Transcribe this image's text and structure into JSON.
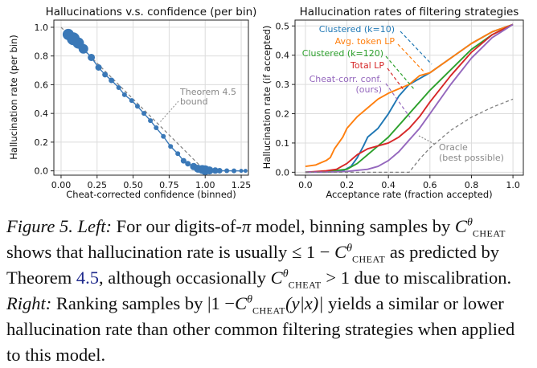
{
  "chart_data": [
    {
      "type": "scatter",
      "title": "Hallucinations v.s. confidence (per bin)",
      "xlabel": "Cheat-corrected confidence (binned)",
      "ylabel": "Hallucination rate (per bin)",
      "xlim": [
        -0.05,
        1.3
      ],
      "ylim": [
        -0.03,
        1.05
      ],
      "xticks": [
        "0.00",
        "0.25",
        "0.50",
        "0.75",
        "1.00",
        "1.25"
      ],
      "yticks": [
        "0.0",
        "0.2",
        "0.4",
        "0.6",
        "0.8",
        "1.0"
      ],
      "grid": true,
      "series": [
        {
          "color": "#3a78b7",
          "x": [
            0.05,
            0.085,
            0.12,
            0.155,
            0.21,
            0.26,
            0.305,
            0.35,
            0.4,
            0.44,
            0.49,
            0.53,
            0.575,
            0.62,
            0.66,
            0.71,
            0.76,
            0.81,
            0.85,
            0.88,
            0.92,
            0.95,
            0.98,
            1.0,
            1.03,
            1.07,
            1.1,
            1.15,
            1.2,
            1.25,
            1.28
          ],
          "y": [
            0.95,
            0.92,
            0.89,
            0.85,
            0.79,
            0.72,
            0.67,
            0.63,
            0.58,
            0.53,
            0.49,
            0.45,
            0.4,
            0.35,
            0.3,
            0.24,
            0.17,
            0.12,
            0.07,
            0.05,
            0.03,
            0.015,
            0.01,
            0.005,
            0.003,
            0.002,
            0.001,
            0.001,
            0.0,
            0.0,
            0.0
          ],
          "sizes": [
            7,
            8,
            7,
            6,
            4.5,
            4,
            3.5,
            3.5,
            3,
            3,
            3,
            3,
            3,
            3,
            3,
            3,
            3,
            3,
            3.5,
            3.5,
            4.5,
            5,
            5.5,
            6,
            5,
            4,
            3.5,
            3,
            3,
            2.5,
            2.5
          ]
        }
      ],
      "reference_line": {
        "name": "Theorem 4.5 bound",
        "x": [
          0,
          1,
          1.28
        ],
        "y": [
          1,
          0,
          0
        ],
        "color": "#888888"
      },
      "annotations": [
        "Theorem 4.5",
        "bound"
      ]
    },
    {
      "type": "line",
      "title": "Hallucination rates of filtering strategies",
      "xlabel": "Acceptance rate (fraction accepted)",
      "ylabel": "Hallucination rate (if accepted)",
      "xlim": [
        -0.05,
        1.05
      ],
      "ylim": [
        -0.01,
        0.52
      ],
      "xticks": [
        "0.0",
        "0.2",
        "0.4",
        "0.6",
        "0.8",
        "1.0"
      ],
      "yticks": [
        "0.0",
        "0.1",
        "0.2",
        "0.3",
        "0.4",
        "0.5"
      ],
      "grid": true,
      "series": [
        {
          "name": "Clustered (k=10)",
          "color": "#1f77b4",
          "x": [
            0.0,
            0.1,
            0.18,
            0.22,
            0.25,
            0.28,
            0.3,
            0.35,
            0.4,
            0.45,
            0.5,
            0.55,
            0.6,
            0.7,
            0.8,
            0.9,
            1.0
          ],
          "y": [
            0.0,
            0.003,
            0.005,
            0.02,
            0.05,
            0.09,
            0.12,
            0.15,
            0.2,
            0.26,
            0.3,
            0.32,
            0.34,
            0.39,
            0.44,
            0.48,
            0.505
          ]
        },
        {
          "name": "Avg. token LP",
          "color": "#ff7f0e",
          "x": [
            0.0,
            0.05,
            0.1,
            0.12,
            0.14,
            0.18,
            0.2,
            0.25,
            0.3,
            0.35,
            0.4,
            0.5,
            0.55,
            0.6,
            0.7,
            0.8,
            0.9,
            1.0
          ],
          "y": [
            0.02,
            0.025,
            0.04,
            0.05,
            0.08,
            0.12,
            0.15,
            0.19,
            0.22,
            0.25,
            0.27,
            0.3,
            0.33,
            0.34,
            0.39,
            0.44,
            0.48,
            0.505
          ]
        },
        {
          "name": "Clustered (k=120)",
          "color": "#2ca02c",
          "x": [
            0.0,
            0.1,
            0.2,
            0.25,
            0.3,
            0.35,
            0.4,
            0.45,
            0.5,
            0.55,
            0.6,
            0.7,
            0.8,
            0.9,
            1.0
          ],
          "y": [
            0.0,
            0.002,
            0.01,
            0.03,
            0.06,
            0.09,
            0.12,
            0.16,
            0.2,
            0.24,
            0.28,
            0.35,
            0.42,
            0.47,
            0.505
          ]
        },
        {
          "name": "Total LP",
          "color": "#d62728",
          "x": [
            0.0,
            0.1,
            0.15,
            0.2,
            0.25,
            0.3,
            0.35,
            0.4,
            0.45,
            0.5,
            0.55,
            0.6,
            0.7,
            0.8,
            0.9,
            1.0
          ],
          "y": [
            0.0,
            0.005,
            0.01,
            0.03,
            0.06,
            0.08,
            0.09,
            0.1,
            0.12,
            0.15,
            0.19,
            0.24,
            0.33,
            0.41,
            0.47,
            0.505
          ]
        },
        {
          "name": "Cheat-corr. conf. (ours)",
          "color": "#9467bd",
          "x": [
            0.0,
            0.1,
            0.2,
            0.3,
            0.35,
            0.4,
            0.45,
            0.5,
            0.55,
            0.6,
            0.7,
            0.8,
            0.9,
            1.0
          ],
          "y": [
            0.0,
            0.0,
            0.003,
            0.01,
            0.02,
            0.04,
            0.07,
            0.11,
            0.15,
            0.2,
            0.3,
            0.39,
            0.46,
            0.505
          ]
        },
        {
          "name": "Oracle (best possible)",
          "color": "#7f7f7f",
          "dashed": true,
          "x": [
            0.0,
            0.5,
            0.55,
            0.6,
            0.7,
            0.8,
            0.9,
            1.0
          ],
          "y": [
            0.0,
            0.0,
            0.045,
            0.083,
            0.143,
            0.188,
            0.222,
            0.25
          ]
        }
      ],
      "legend_labels": [
        "Clustered (k=10)",
        "Avg. token LP",
        "Clustered (k=120)",
        "Total LP",
        "Cheat-corr. conf.",
        "(ours)",
        "Oracle",
        "(best possible)"
      ]
    }
  ],
  "caption": {
    "figure_label": "Figure 5.",
    "left_label": "Left:",
    "text1": "For our digits-of-",
    "pi": "π",
    "text2": "model, binning samples by",
    "c_base": "C",
    "c_sup": "θ",
    "c_sub": "CHEAT",
    "text3": "shows that hallucination rate is usually",
    "leq_one": "≤ 1 −",
    "text4": "as predicted by Theorem",
    "theorem_ref": "4.5",
    "text5": ", although occasionally",
    "gt_one": "> 1",
    "text6": "due to miscalibration.",
    "right_label": "Right:",
    "text7": "Ranking samples by",
    "abs_open": "|1 −",
    "abs_arg": "(y|x)|",
    "text8": "yields a similar or lower hallucination rate than other common filtering strategies when applied to this model."
  }
}
